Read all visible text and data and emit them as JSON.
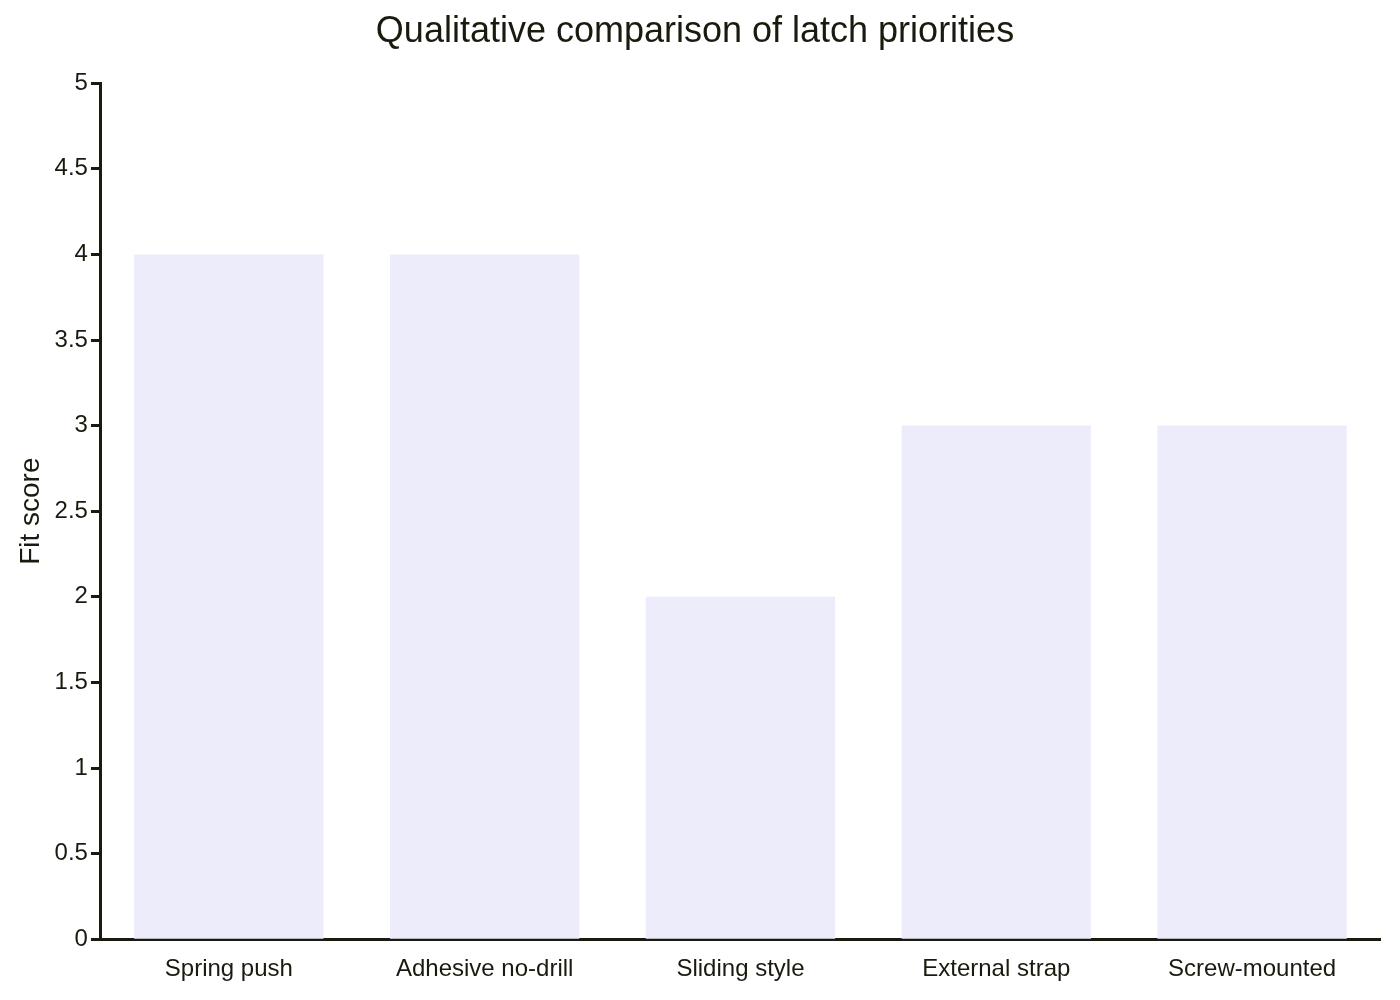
{
  "chart_data": {
    "type": "bar",
    "title": "Qualitative comparison of latch priorities",
    "ylabel": "Fit score",
    "categories": [
      "Spring push",
      "Adhesive no-drill",
      "Sliding style",
      "External strap",
      "Screw-mounted"
    ],
    "values": [
      4,
      4,
      2,
      3,
      3
    ],
    "color": "#ececfb",
    "ylim": [
      0,
      5
    ],
    "yticks": [
      0,
      0.5,
      1,
      1.5,
      2,
      2.5,
      3,
      3.5,
      4,
      4.5,
      5
    ],
    "grid": false,
    "legend": false
  }
}
